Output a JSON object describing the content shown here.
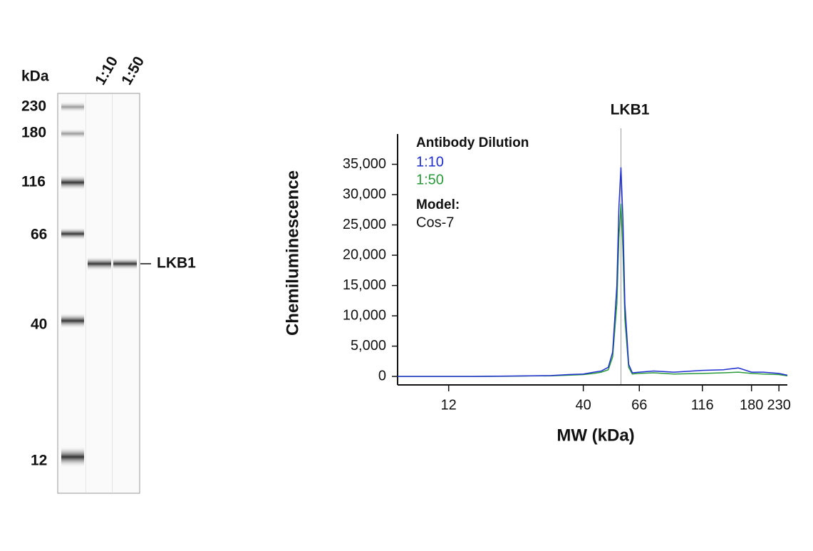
{
  "blot": {
    "unit": "kDa",
    "lanes": [
      "1:10",
      "1:50"
    ],
    "markers": [
      "230",
      "180",
      "116",
      "66",
      "40",
      "12"
    ],
    "band_label": "LKB1"
  },
  "chart_data": {
    "type": "line",
    "title": "LKB1",
    "x_label": "MW (kDa)",
    "y_label": "Chemiluminescence",
    "legend_title": "Antibody Dilution",
    "model_title": "Model:",
    "model": "Cos-7",
    "xscale": "log",
    "xlim": [
      7.6,
      248
    ],
    "xticks": [
      12,
      40,
      66,
      116,
      180,
      230
    ],
    "ylim": [
      -1400,
      40000
    ],
    "yticks": [
      0,
      {
        "value": 5000,
        "label": "5,000"
      },
      {
        "value": 10000,
        "label": "10,000"
      },
      {
        "value": 15000,
        "label": "15,000"
      },
      {
        "value": 20000,
        "label": "20,000"
      },
      {
        "value": 25000,
        "label": "25,000"
      },
      {
        "value": 30000,
        "label": "30,000"
      },
      {
        "value": 35000,
        "label": "35,000"
      }
    ],
    "reference_x": 56,
    "x": [
      7.6,
      10,
      12,
      15,
      20,
      25,
      30,
      35,
      40,
      44,
      47,
      50,
      52,
      54,
      55,
      56,
      57,
      58,
      60,
      62,
      66,
      75,
      90,
      116,
      140,
      160,
      180,
      200,
      230,
      248
    ],
    "series": [
      {
        "name": "1:10",
        "color": "#1f2fd0",
        "values": [
          0,
          0,
          0,
          0,
          50,
          100,
          150,
          300,
          400,
          700,
          900,
          1500,
          4000,
          15000,
          28000,
          34500,
          26000,
          12000,
          2000,
          600,
          700,
          900,
          700,
          1000,
          1100,
          1400,
          700,
          700,
          500,
          200
        ]
      },
      {
        "name": "1:50",
        "color": "#2a9a3a",
        "values": [
          0,
          0,
          0,
          0,
          30,
          80,
          100,
          200,
          300,
          500,
          700,
          1100,
          3200,
          12000,
          23000,
          28500,
          21000,
          9500,
          1500,
          400,
          500,
          600,
          400,
          500,
          600,
          700,
          500,
          400,
          300,
          100
        ]
      }
    ]
  }
}
